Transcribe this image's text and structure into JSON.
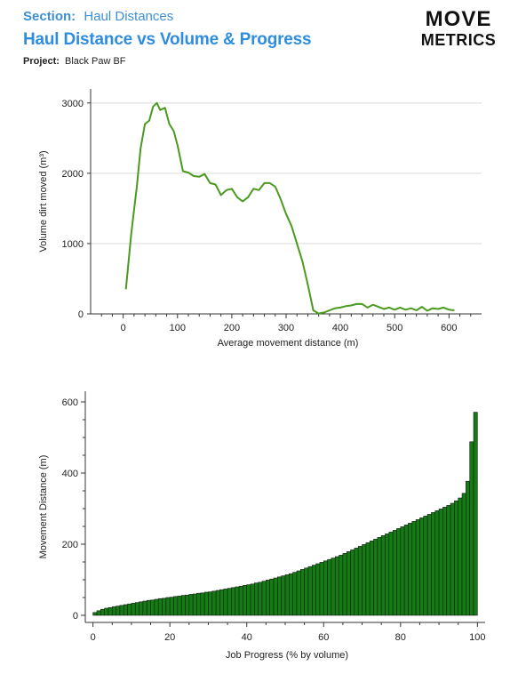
{
  "header": {
    "section_key": "Section:",
    "section_value": "Haul Distances",
    "title": "Haul Distance vs Volume & Progress",
    "project_key": "Project:",
    "project_value": "Black Paw BF"
  },
  "logo": {
    "line1": "MOVE",
    "line2": "METRICS"
  },
  "colors": {
    "accent": "#2f8de0",
    "line": "#4a9a1f",
    "bar_fill": "#137c13",
    "bar_stroke": "#1a1a1a",
    "grid": "#d9d9d9"
  },
  "chart_data": [
    {
      "type": "line",
      "title": "",
      "xlabel": "Average movement distance (m)",
      "ylabel": "Volume dirt moved (m³)",
      "xlim": [
        -60,
        660
      ],
      "ylim": [
        0,
        3200
      ],
      "xticks": [
        0,
        100,
        200,
        300,
        400,
        500,
        600
      ],
      "yticks": [
        0,
        1000,
        2000,
        3000
      ],
      "grid": true,
      "series": [
        {
          "x": [
            5,
            15,
            25,
            32,
            40,
            48,
            55,
            62,
            68,
            77,
            85,
            93,
            100,
            110,
            120,
            130,
            140,
            150,
            160,
            170,
            180,
            190,
            200,
            210,
            220,
            230,
            240,
            250,
            260,
            270,
            280,
            290,
            300,
            310,
            320,
            330,
            340,
            350,
            360,
            370,
            380,
            390,
            400,
            410,
            420,
            430,
            440,
            450,
            460,
            470,
            480,
            490,
            500,
            510,
            520,
            530,
            540,
            550,
            560,
            570,
            580,
            590,
            600,
            610
          ],
          "y": [
            350,
            1150,
            1800,
            2350,
            2700,
            2750,
            2950,
            3000,
            2900,
            2930,
            2700,
            2600,
            2400,
            2030,
            2010,
            1960,
            1950,
            1990,
            1860,
            1840,
            1690,
            1760,
            1780,
            1660,
            1600,
            1660,
            1780,
            1760,
            1860,
            1860,
            1810,
            1630,
            1420,
            1250,
            1000,
            750,
            420,
            50,
            5,
            20,
            50,
            80,
            90,
            110,
            120,
            140,
            140,
            90,
            130,
            100,
            70,
            90,
            60,
            90,
            60,
            80,
            50,
            100,
            45,
            80,
            70,
            90,
            60,
            50
          ]
        }
      ]
    },
    {
      "type": "bar",
      "title": "",
      "xlabel": "Job Progress (% by volume)",
      "ylabel": "Movement Distance (m)",
      "xlim": [
        -2,
        102
      ],
      "ylim": [
        -20,
        630
      ],
      "xticks": [
        0,
        20,
        40,
        60,
        80,
        100
      ],
      "yticks": [
        0,
        200,
        400,
        600
      ],
      "grid": false,
      "x_start": 0.5,
      "x_step": 1,
      "values": [
        8,
        13,
        17,
        20,
        22,
        24,
        26,
        28,
        30,
        32,
        34,
        36,
        38,
        40,
        42,
        43,
        45,
        47,
        48,
        50,
        51,
        53,
        54,
        56,
        57,
        59,
        60,
        62,
        63,
        65,
        66,
        68,
        70,
        72,
        74,
        76,
        78,
        80,
        82,
        84,
        86,
        88,
        91,
        93,
        96,
        99,
        102,
        105,
        108,
        111,
        114,
        117,
        121,
        125,
        129,
        133,
        137,
        141,
        145,
        149,
        153,
        157,
        161,
        165,
        169,
        174,
        179,
        184,
        189,
        194,
        199,
        204,
        209,
        214,
        219,
        224,
        229,
        234,
        239,
        244,
        249,
        254,
        259,
        264,
        269,
        274,
        279,
        284,
        289,
        294,
        299,
        304,
        309,
        315,
        322,
        330,
        343,
        377,
        488,
        571
      ]
    }
  ]
}
